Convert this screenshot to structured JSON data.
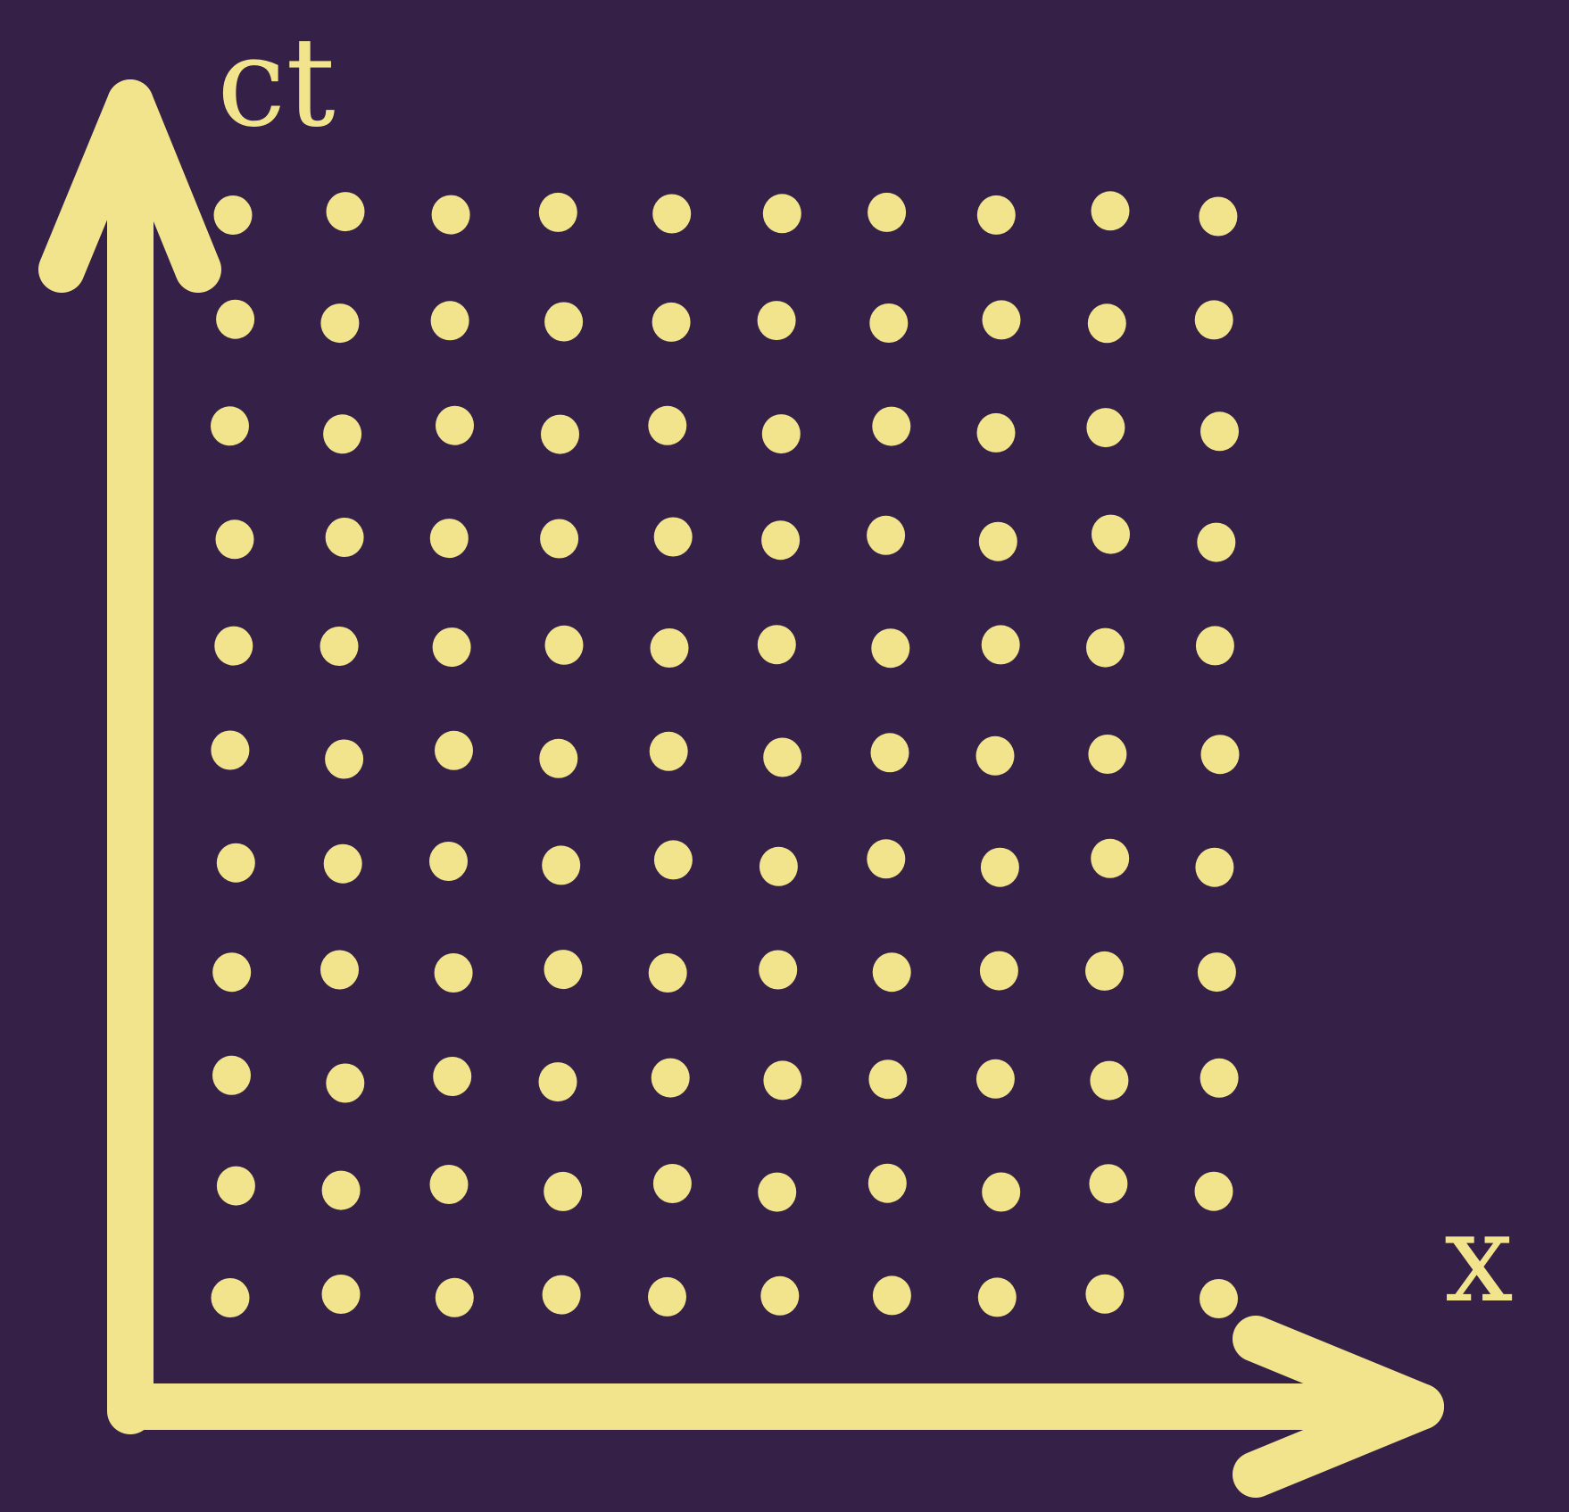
{
  "diagram": {
    "background_color": "#352047",
    "foreground_color": "#f2e38d",
    "vertical_axis": {
      "label": "ct"
    },
    "horizontal_axis": {
      "label": "x"
    },
    "lattice": {
      "rows": 11,
      "columns": 10,
      "point_shape": "dot"
    }
  }
}
